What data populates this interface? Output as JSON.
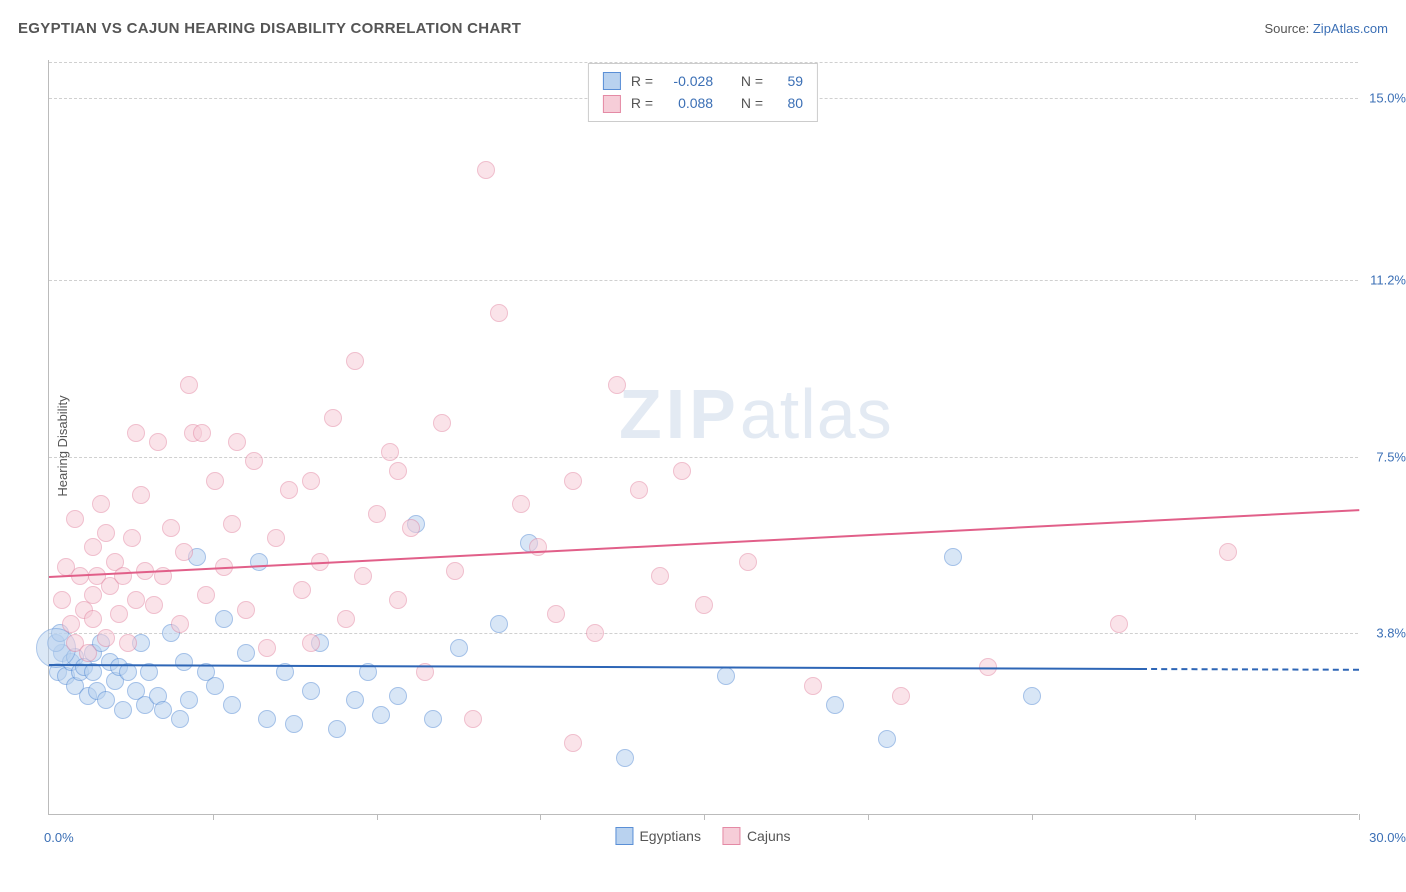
{
  "header": {
    "title": "EGYPTIAN VS CAJUN HEARING DISABILITY CORRELATION CHART",
    "source_prefix": "Source: ",
    "source_link": "ZipAtlas.com"
  },
  "watermark": {
    "zip": "ZIP",
    "atlas": "atlas"
  },
  "chart": {
    "type": "scatter",
    "y_axis_title": "Hearing Disability",
    "xlim": [
      0.0,
      30.0
    ],
    "ylim": [
      0.0,
      15.8
    ],
    "x_tick_positions": [
      3.75,
      7.5,
      11.25,
      15.0,
      18.75,
      22.5,
      26.25,
      30.0
    ],
    "xlim_labels": {
      "min": "0.0%",
      "max": "30.0%"
    },
    "y_gridlines": [
      {
        "value": 3.8,
        "label": "3.8%"
      },
      {
        "value": 7.5,
        "label": "7.5%"
      },
      {
        "value": 11.2,
        "label": "11.2%"
      },
      {
        "value": 15.0,
        "label": "15.0%"
      }
    ],
    "background_color": "#ffffff",
    "grid_color": "#d0d0d0",
    "axis_color": "#bbbbbb",
    "tick_label_color": "#3b6fb5",
    "marker_radius": 9,
    "marker_opacity": 0.55,
    "series": [
      {
        "name": "Egyptians",
        "fill": "#b9d2ef",
        "stroke": "#5a8fd6",
        "trend_color": "#2e66b6",
        "trend": {
          "y_at_xmin": 3.15,
          "y_at_xmax": 3.05,
          "solid_until_x": 25.0
        },
        "stats": {
          "R": "-0.028",
          "N": "59"
        },
        "points": [
          [
            0.2,
            3.0
          ],
          [
            0.3,
            3.4
          ],
          [
            0.4,
            2.9
          ],
          [
            0.5,
            3.2
          ],
          [
            0.6,
            2.7
          ],
          [
            0.6,
            3.3
          ],
          [
            0.7,
            3.0
          ],
          [
            0.8,
            3.1
          ],
          [
            0.9,
            2.5
          ],
          [
            1.0,
            3.0
          ],
          [
            1.0,
            3.4
          ],
          [
            1.1,
            2.6
          ],
          [
            1.2,
            3.6
          ],
          [
            1.3,
            2.4
          ],
          [
            1.4,
            3.2
          ],
          [
            1.5,
            2.8
          ],
          [
            1.6,
            3.1
          ],
          [
            1.7,
            2.2
          ],
          [
            1.8,
            3.0
          ],
          [
            2.0,
            2.6
          ],
          [
            2.1,
            3.6
          ],
          [
            2.2,
            2.3
          ],
          [
            2.3,
            3.0
          ],
          [
            2.5,
            2.5
          ],
          [
            2.6,
            2.2
          ],
          [
            2.8,
            3.8
          ],
          [
            3.0,
            2.0
          ],
          [
            3.1,
            3.2
          ],
          [
            3.2,
            2.4
          ],
          [
            3.4,
            5.4
          ],
          [
            3.6,
            3.0
          ],
          [
            3.8,
            2.7
          ],
          [
            4.0,
            4.1
          ],
          [
            4.2,
            2.3
          ],
          [
            4.5,
            3.4
          ],
          [
            4.8,
            5.3
          ],
          [
            5.0,
            2.0
          ],
          [
            5.4,
            3.0
          ],
          [
            5.6,
            1.9
          ],
          [
            6.0,
            2.6
          ],
          [
            6.2,
            3.6
          ],
          [
            6.6,
            1.8
          ],
          [
            7.0,
            2.4
          ],
          [
            7.3,
            3.0
          ],
          [
            7.6,
            2.1
          ],
          [
            8.0,
            2.5
          ],
          [
            8.4,
            6.1
          ],
          [
            8.8,
            2.0
          ],
          [
            9.4,
            3.5
          ],
          [
            10.3,
            4.0
          ],
          [
            11.0,
            5.7
          ],
          [
            13.2,
            1.2
          ],
          [
            15.5,
            2.9
          ],
          [
            18.0,
            2.3
          ],
          [
            19.2,
            1.6
          ],
          [
            20.7,
            5.4
          ],
          [
            22.5,
            2.5
          ],
          [
            0.15,
            3.6
          ],
          [
            0.25,
            3.8
          ]
        ],
        "big_marker": {
          "x": 0.15,
          "y": 3.5,
          "radius": 20
        }
      },
      {
        "name": "Cajuns",
        "fill": "#f6cdd8",
        "stroke": "#e48aa5",
        "trend_color": "#e15f89",
        "trend": {
          "y_at_xmin": 5.0,
          "y_at_xmax": 6.4,
          "solid_until_x": 30.0
        },
        "stats": {
          "R": "0.088",
          "N": "80"
        },
        "points": [
          [
            0.3,
            4.5
          ],
          [
            0.4,
            5.2
          ],
          [
            0.5,
            4.0
          ],
          [
            0.6,
            6.2
          ],
          [
            0.6,
            3.6
          ],
          [
            0.7,
            5.0
          ],
          [
            0.8,
            4.3
          ],
          [
            0.9,
            3.4
          ],
          [
            1.0,
            5.6
          ],
          [
            1.0,
            4.1
          ],
          [
            1.1,
            5.0
          ],
          [
            1.2,
            6.5
          ],
          [
            1.3,
            3.7
          ],
          [
            1.4,
            4.8
          ],
          [
            1.5,
            5.3
          ],
          [
            1.6,
            4.2
          ],
          [
            1.7,
            5.0
          ],
          [
            1.8,
            3.6
          ],
          [
            1.9,
            5.8
          ],
          [
            2.0,
            4.5
          ],
          [
            2.1,
            6.7
          ],
          [
            2.2,
            5.1
          ],
          [
            2.4,
            4.4
          ],
          [
            2.5,
            7.8
          ],
          [
            2.6,
            5.0
          ],
          [
            2.8,
            6.0
          ],
          [
            3.0,
            4.0
          ],
          [
            3.1,
            5.5
          ],
          [
            3.2,
            9.0
          ],
          [
            3.3,
            8.0
          ],
          [
            3.6,
            4.6
          ],
          [
            3.8,
            7.0
          ],
          [
            4.0,
            5.2
          ],
          [
            4.2,
            6.1
          ],
          [
            4.5,
            4.3
          ],
          [
            4.7,
            7.4
          ],
          [
            5.0,
            3.5
          ],
          [
            5.2,
            5.8
          ],
          [
            5.5,
            6.8
          ],
          [
            5.8,
            4.7
          ],
          [
            6.0,
            7.0
          ],
          [
            6.2,
            5.3
          ],
          [
            6.5,
            8.3
          ],
          [
            6.8,
            4.1
          ],
          [
            7.0,
            9.5
          ],
          [
            7.2,
            5.0
          ],
          [
            7.5,
            6.3
          ],
          [
            7.8,
            7.6
          ],
          [
            8.0,
            4.5
          ],
          [
            8.3,
            6.0
          ],
          [
            8.6,
            3.0
          ],
          [
            9.0,
            8.2
          ],
          [
            9.3,
            5.1
          ],
          [
            9.7,
            2.0
          ],
          [
            10.0,
            13.5
          ],
          [
            10.3,
            10.5
          ],
          [
            10.8,
            6.5
          ],
          [
            11.2,
            5.6
          ],
          [
            11.6,
            4.2
          ],
          [
            12.0,
            7.0
          ],
          [
            12.5,
            3.8
          ],
          [
            13.0,
            9.0
          ],
          [
            13.5,
            6.8
          ],
          [
            14.0,
            5.0
          ],
          [
            14.5,
            7.2
          ],
          [
            15.0,
            4.4
          ],
          [
            16.0,
            5.3
          ],
          [
            17.5,
            2.7
          ],
          [
            19.5,
            2.5
          ],
          [
            21.5,
            3.1
          ],
          [
            24.5,
            4.0
          ],
          [
            27.0,
            5.5
          ],
          [
            1.0,
            4.6
          ],
          [
            1.3,
            5.9
          ],
          [
            2.0,
            8.0
          ],
          [
            3.5,
            8.0
          ],
          [
            4.3,
            7.8
          ],
          [
            8.0,
            7.2
          ],
          [
            6.0,
            3.6
          ],
          [
            12.0,
            1.5
          ]
        ]
      }
    ],
    "stats_legend": {
      "R_label": "R =",
      "N_label": "N ="
    },
    "bottom_legend": [
      {
        "label": "Egyptians",
        "fill": "#b9d2ef",
        "stroke": "#5a8fd6"
      },
      {
        "label": "Cajuns",
        "fill": "#f6cdd8",
        "stroke": "#e48aa5"
      }
    ]
  }
}
